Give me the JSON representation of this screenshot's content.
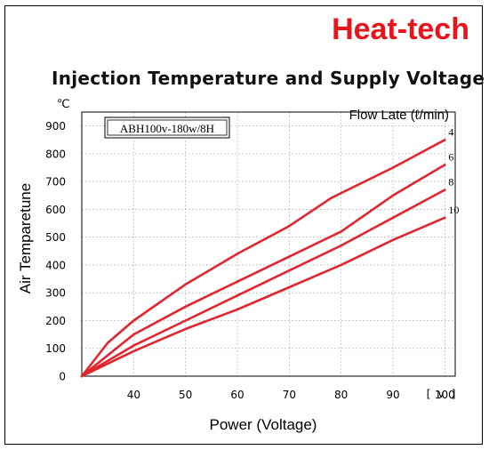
{
  "brand": "Heat-tech",
  "chart_data": {
    "type": "line",
    "title": "Injection Temperature and Supply Voltage",
    "product_label": "ABH100v-180w/8H",
    "legend_title": "Flow Late (ℓ/min)",
    "xlabel": "Power (Voltage)",
    "ylabel": "Air Temparetune",
    "x_unit": "[ v ]",
    "y_unit": "℃",
    "xlim": [
      30,
      102
    ],
    "ylim": [
      0,
      950
    ],
    "xticks": [
      40,
      50,
      60,
      70,
      80,
      90,
      100
    ],
    "yticks": [
      0,
      100,
      200,
      300,
      400,
      500,
      600,
      700,
      800,
      900
    ],
    "grid": true,
    "line_color": "#e0262e",
    "series": [
      {
        "name": "4",
        "x": [
          30,
          35,
          40,
          50,
          60,
          70,
          78,
          90,
          100
        ],
        "y": [
          0,
          120,
          200,
          330,
          440,
          540,
          640,
          750,
          850
        ]
      },
      {
        "name": "6",
        "x": [
          30,
          40,
          50,
          60,
          70,
          80,
          90,
          100
        ],
        "y": [
          0,
          150,
          250,
          340,
          430,
          520,
          650,
          760
        ]
      },
      {
        "name": "8",
        "x": [
          30,
          40,
          50,
          60,
          70,
          80,
          90,
          100
        ],
        "y": [
          0,
          110,
          200,
          290,
          380,
          470,
          570,
          670
        ]
      },
      {
        "name": "10",
        "x": [
          30,
          40,
          50,
          60,
          70,
          80,
          90,
          100
        ],
        "y": [
          0,
          90,
          170,
          240,
          320,
          400,
          490,
          570
        ]
      }
    ]
  }
}
